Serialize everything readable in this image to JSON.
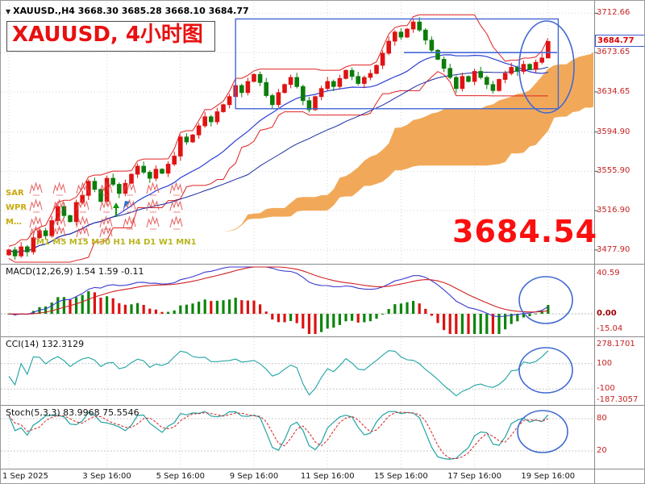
{
  "colors": {
    "up_candle": "#e01212",
    "down_candle": "#0b7d0b",
    "cloud": "#f0a24b",
    "band_red": "#e02222",
    "ma_blue": "#2b3fd6",
    "annotation_blue": "#4169d2",
    "axis_text": "#c62222",
    "big_red": "#fb0f0f",
    "yellow_label": "#c9a90a",
    "teal_line": "#21a3a3",
    "signal_red": "#d02020",
    "grid": "#d4d4d4"
  },
  "header": {
    "dropdown_icon": "▼",
    "symbol_ohlc": "XAUUSD.,H4 3668.30 3685.28 3668.10 3684.77"
  },
  "overlay": {
    "title": "XAUUSD, 4小时图",
    "big_price": "3684.54"
  },
  "left_panel": {
    "indicators": [
      "SAR",
      "WPR",
      "M…"
    ],
    "timeframes": "M1 M5 M15 M30 H1 H4 D1 W1 MN1"
  },
  "price_axis": {
    "ticks": [
      "3712.66",
      "3673.65",
      "3634.65",
      "3594.90",
      "3555.90",
      "3516.90",
      "3477.90"
    ],
    "badge": "3684.77"
  },
  "panels": {
    "macd": {
      "label": "MACD(12,26,9) 1.54 1.59 -0.11",
      "ticks": [
        "40.59",
        "0.00",
        "-15.04"
      ]
    },
    "cci": {
      "label": "CCI(14) 132.3129",
      "ticks": [
        "278.1701",
        "100",
        "-100",
        "-187.3057"
      ]
    },
    "stoch": {
      "label": "Stoch(5,3,3) 83.9968 75.5546",
      "ticks": [
        "80",
        "20"
      ]
    }
  },
  "time_axis": [
    "1 Sep 2025",
    "3 Sep 16:00",
    "5 Sep 16:00",
    "9 Sep 16:00",
    "11 Sep 16:00",
    "15 Sep 16:00",
    "17 Sep 16:00",
    "19 Sep 16:00"
  ],
  "chart_data": {
    "type": "candlestick",
    "symbol": "XAUUSD",
    "timeframe": "H4",
    "title": "XAUUSD, 4小时图",
    "ohlc_current": {
      "open": 3668.3,
      "high": 3685.28,
      "low": 3668.1,
      "close": 3684.77
    },
    "displayed_price": 3684.54,
    "ylim": [
      3465,
      3725
    ],
    "y_ticks": [
      3712.66,
      3673.65,
      3634.65,
      3594.9,
      3555.9,
      3516.9,
      3477.9
    ],
    "x_tick_indices": [
      0,
      16,
      28,
      40,
      52,
      64,
      76,
      88
    ],
    "x_tick_labels": [
      "1 Sep 2025",
      "3 Sep 16:00",
      "5 Sep 16:00",
      "9 Sep 16:00",
      "11 Sep 16:00",
      "15 Sep 16:00",
      "17 Sep 16:00",
      "19 Sep 16:00"
    ],
    "closes": [
      3478,
      3472,
      3481,
      3476,
      3490,
      3497,
      3492,
      3507,
      3521,
      3512,
      3506,
      3525,
      3532,
      3546,
      3538,
      3526,
      3549,
      3543,
      3534,
      3544,
      3553,
      3561,
      3555,
      3549,
      3558,
      3554,
      3563,
      3571,
      3590,
      3585,
      3592,
      3601,
      3610,
      3605,
      3615,
      3622,
      3630,
      3641,
      3634,
      3645,
      3652,
      3644,
      3631,
      3622,
      3634,
      3642,
      3649,
      3640,
      3626,
      3617,
      3630,
      3638,
      3645,
      3640,
      3648,
      3656,
      3650,
      3643,
      3649,
      3653,
      3661,
      3673,
      3685,
      3694,
      3689,
      3697,
      3704,
      3696,
      3686,
      3676,
      3667,
      3658,
      3649,
      3638,
      3650,
      3645,
      3655,
      3649,
      3642,
      3636,
      3647,
      3653,
      3659,
      3655,
      3662,
      3657,
      3664,
      3668.3,
      3684.77
    ],
    "trendline_price": 3673.65,
    "rectangle": {
      "x1_index": 37,
      "x2_index": 89,
      "price_top": 3707,
      "price_bottom": 3618
    },
    "overlays": [
      "ichimoku-cloud",
      "red-envelope-bands",
      "blue-moving-averages"
    ],
    "indicators": [
      {
        "name": "MACD",
        "params": [
          12,
          26,
          9
        ],
        "current": {
          "macd": 1.54,
          "signal": 1.59,
          "hist": -0.11
        },
        "y_ticks": [
          40.59,
          0,
          -15.04
        ]
      },
      {
        "name": "CCI",
        "params": [
          14
        ],
        "current": 132.3129,
        "y_ticks": [
          278.1701,
          100,
          -100,
          -187.3057
        ]
      },
      {
        "name": "Stoch",
        "params": [
          5,
          3,
          3
        ],
        "current": [
          83.9968,
          75.5546
        ],
        "y_ticks": [
          80,
          20
        ]
      }
    ],
    "annotations": [
      "blue-rectangle-consolidation",
      "blue-horizontal-trendline",
      "blue-ellipse-main",
      "blue-ellipse-macd",
      "blue-ellipse-cci",
      "blue-ellipse-stoch",
      "red-pattern-stamps"
    ]
  }
}
